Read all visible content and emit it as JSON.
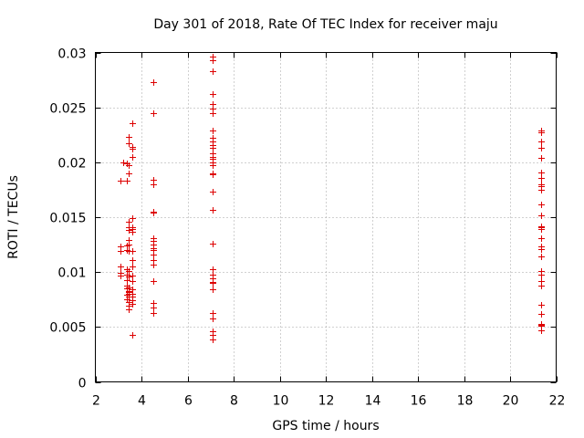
{
  "chart_data": {
    "type": "scatter",
    "title": "Day 301 of 2018, Rate Of TEC Index for receiver maju",
    "xlabel": "GPS time / hours",
    "ylabel": "ROTI / TECUs",
    "xlim": [
      2,
      22
    ],
    "ylim": [
      0,
      0.03
    ],
    "x_ticks": [
      2,
      4,
      6,
      8,
      10,
      12,
      14,
      16,
      18,
      20,
      22
    ],
    "x_tick_labels": [
      "2",
      "4",
      "6",
      "8",
      "10",
      "12",
      "14",
      "16",
      "18",
      "20",
      "22"
    ],
    "y_ticks": [
      0,
      0.005,
      0.01,
      0.015,
      0.02,
      0.025,
      0.03
    ],
    "y_tick_labels": [
      "0",
      "0.005",
      "0.01",
      "0.015",
      "0.02",
      "0.025",
      "0.03"
    ],
    "grid": true,
    "marker": "+",
    "color": "#dd0000",
    "series": [
      {
        "name": "ROTI",
        "points": [
          [
            3.1,
            0.0183
          ],
          [
            3.1,
            0.0123
          ],
          [
            3.1,
            0.0119
          ],
          [
            3.1,
            0.0105
          ],
          [
            3.1,
            0.0099
          ],
          [
            3.1,
            0.0097
          ],
          [
            3.2,
            0.02
          ],
          [
            3.35,
            0.0199
          ],
          [
            3.35,
            0.0183
          ],
          [
            3.35,
            0.0124
          ],
          [
            3.35,
            0.012
          ],
          [
            3.35,
            0.0103
          ],
          [
            3.35,
            0.0098
          ],
          [
            3.35,
            0.0093
          ],
          [
            3.35,
            0.0088
          ],
          [
            3.35,
            0.0085
          ],
          [
            3.35,
            0.0079
          ],
          [
            3.35,
            0.0075
          ],
          [
            3.45,
            0.0223
          ],
          [
            3.45,
            0.0217
          ],
          [
            3.45,
            0.0197
          ],
          [
            3.45,
            0.019
          ],
          [
            3.45,
            0.0146
          ],
          [
            3.45,
            0.0141
          ],
          [
            3.45,
            0.0138
          ],
          [
            3.45,
            0.0129
          ],
          [
            3.45,
            0.0125
          ],
          [
            3.45,
            0.0119
          ],
          [
            3.45,
            0.0101
          ],
          [
            3.45,
            0.0096
          ],
          [
            3.45,
            0.0086
          ],
          [
            3.45,
            0.0083
          ],
          [
            3.45,
            0.0082
          ],
          [
            3.45,
            0.008
          ],
          [
            3.45,
            0.0078
          ],
          [
            3.45,
            0.0073
          ],
          [
            3.45,
            0.0069
          ],
          [
            3.45,
            0.0066
          ],
          [
            3.6,
            0.0236
          ],
          [
            3.6,
            0.0214
          ],
          [
            3.6,
            0.0212
          ],
          [
            3.6,
            0.0205
          ],
          [
            3.6,
            0.0149
          ],
          [
            3.6,
            0.0141
          ],
          [
            3.6,
            0.0139
          ],
          [
            3.6,
            0.0137
          ],
          [
            3.6,
            0.0119
          ],
          [
            3.6,
            0.0111
          ],
          [
            3.6,
            0.0105
          ],
          [
            3.6,
            0.0097
          ],
          [
            3.6,
            0.0092
          ],
          [
            3.6,
            0.0084
          ],
          [
            3.6,
            0.008
          ],
          [
            3.6,
            0.0078
          ],
          [
            3.6,
            0.0074
          ],
          [
            3.6,
            0.0071
          ],
          [
            3.6,
            0.0043
          ],
          [
            4.5,
            0.0273
          ],
          [
            4.5,
            0.0245
          ],
          [
            4.5,
            0.0184
          ],
          [
            4.5,
            0.018
          ],
          [
            4.5,
            0.0155
          ],
          [
            4.5,
            0.0154
          ],
          [
            4.5,
            0.0131
          ],
          [
            4.5,
            0.0128
          ],
          [
            4.5,
            0.0125
          ],
          [
            4.5,
            0.0122
          ],
          [
            4.5,
            0.012
          ],
          [
            4.5,
            0.0116
          ],
          [
            4.5,
            0.0111
          ],
          [
            4.5,
            0.0107
          ],
          [
            4.5,
            0.0092
          ],
          [
            4.5,
            0.0072
          ],
          [
            4.5,
            0.0068
          ],
          [
            4.5,
            0.0063
          ],
          [
            7.1,
            0.0296
          ],
          [
            7.1,
            0.0293
          ],
          [
            7.1,
            0.0283
          ],
          [
            7.1,
            0.0262
          ],
          [
            7.1,
            0.0253
          ],
          [
            7.1,
            0.0249
          ],
          [
            7.1,
            0.0245
          ],
          [
            7.1,
            0.0229
          ],
          [
            7.1,
            0.0222
          ],
          [
            7.1,
            0.0219
          ],
          [
            7.1,
            0.0216
          ],
          [
            7.1,
            0.0213
          ],
          [
            7.1,
            0.0208
          ],
          [
            7.1,
            0.0205
          ],
          [
            7.1,
            0.0203
          ],
          [
            7.1,
            0.02
          ],
          [
            7.1,
            0.0197
          ],
          [
            7.1,
            0.019
          ],
          [
            7.1,
            0.0189
          ],
          [
            7.1,
            0.0173
          ],
          [
            7.1,
            0.0157
          ],
          [
            7.1,
            0.0126
          ],
          [
            7.1,
            0.0103
          ],
          [
            7.1,
            0.0098
          ],
          [
            7.1,
            0.0094
          ],
          [
            7.1,
            0.0091
          ],
          [
            7.1,
            0.009
          ],
          [
            7.1,
            0.0084
          ],
          [
            7.1,
            0.0063
          ],
          [
            7.1,
            0.0058
          ],
          [
            7.1,
            0.0046
          ],
          [
            7.1,
            0.0043
          ],
          [
            7.1,
            0.0039
          ],
          [
            21.35,
            0.0229
          ],
          [
            21.35,
            0.0227
          ],
          [
            21.35,
            0.0219
          ],
          [
            21.35,
            0.0213
          ],
          [
            21.35,
            0.0204
          ],
          [
            21.35,
            0.0191
          ],
          [
            21.35,
            0.0186
          ],
          [
            21.35,
            0.018
          ],
          [
            21.35,
            0.0178
          ],
          [
            21.35,
            0.0175
          ],
          [
            21.35,
            0.0162
          ],
          [
            21.35,
            0.0152
          ],
          [
            21.35,
            0.0142
          ],
          [
            21.35,
            0.0141
          ],
          [
            21.35,
            0.0139
          ],
          [
            21.35,
            0.0131
          ],
          [
            21.35,
            0.0123
          ],
          [
            21.35,
            0.0121
          ],
          [
            21.35,
            0.0114
          ],
          [
            21.35,
            0.0101
          ],
          [
            21.35,
            0.0098
          ],
          [
            21.35,
            0.0092
          ],
          [
            21.35,
            0.0088
          ],
          [
            21.35,
            0.007
          ],
          [
            21.35,
            0.0062
          ],
          [
            21.35,
            0.0053
          ],
          [
            21.35,
            0.0052
          ],
          [
            21.35,
            0.0051
          ],
          [
            21.35,
            0.0047
          ]
        ]
      }
    ]
  }
}
